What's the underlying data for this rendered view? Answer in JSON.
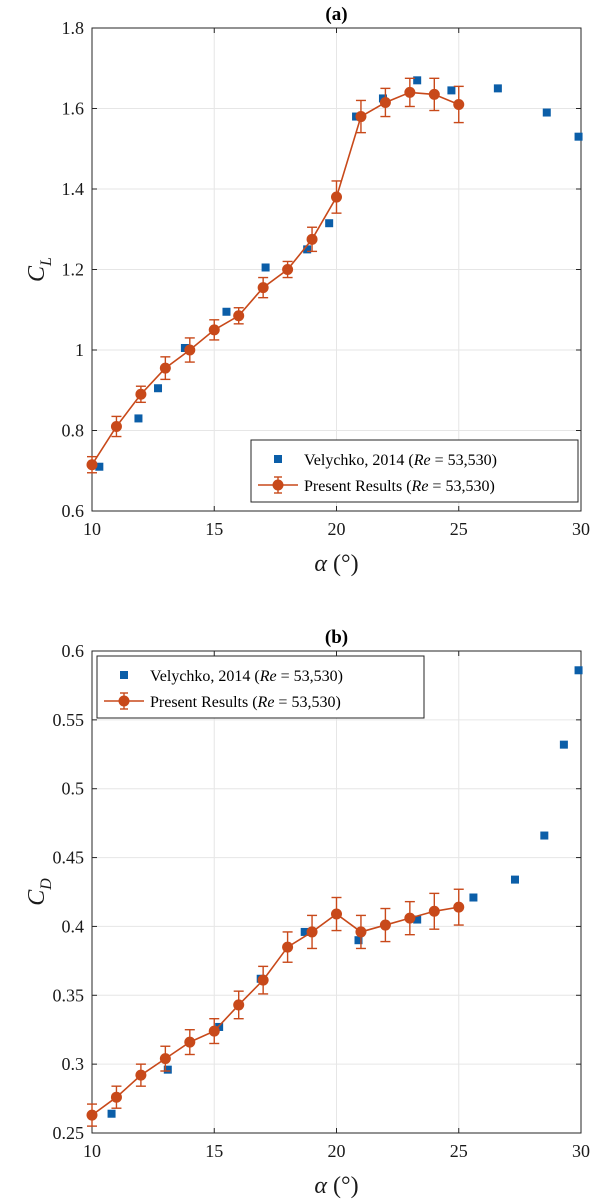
{
  "colors": {
    "velychko": "#0b5ea8",
    "present": "#c8491a",
    "grid": "#e6e6e6",
    "axis": "#262626"
  },
  "chart_data": [
    {
      "type": "scatter",
      "title": "(a)",
      "xlabel": {
        "symbol": "α",
        "unit": "(°)"
      },
      "ylabel": {
        "base": "C",
        "sub": "L"
      },
      "xlim": [
        10,
        30
      ],
      "ylim": [
        0.6,
        1.8
      ],
      "xticks": [
        10,
        15,
        20,
        25,
        30
      ],
      "xtick_labels": [
        "10",
        "15",
        "20",
        "25",
        "30"
      ],
      "yticks": [
        0.6,
        0.8,
        1.0,
        1.2,
        1.4,
        1.6,
        1.8
      ],
      "ytick_labels": [
        "0.6",
        "0.8",
        "1",
        "1.2",
        "1.4",
        "1.6",
        "1.8"
      ],
      "grid": true,
      "legend_position": "bottom-right",
      "series": [
        {
          "name": "Velychko, 2014",
          "re_label": "Re",
          "re_value": "= 53,530)",
          "marker": "square",
          "line": false,
          "x": [
            10.3,
            11.9,
            12.7,
            13.8,
            15.5,
            17.1,
            18.8,
            19.7,
            20.8,
            21.9,
            23.3,
            24.7,
            26.6,
            28.6,
            29.9
          ],
          "y": [
            0.71,
            0.83,
            0.905,
            1.005,
            1.095,
            1.205,
            1.25,
            1.315,
            1.58,
            1.625,
            1.67,
            1.645,
            1.65,
            1.59,
            1.53
          ]
        },
        {
          "name": "Present Results",
          "re_label": "Re",
          "re_value": "= 53,530)",
          "marker": "circle",
          "line": true,
          "x": [
            10,
            11,
            12,
            13,
            14,
            15,
            16,
            17,
            18,
            19,
            20,
            21,
            22,
            23,
            24,
            25
          ],
          "y": [
            0.715,
            0.81,
            0.89,
            0.955,
            1.0,
            1.05,
            1.085,
            1.155,
            1.2,
            1.275,
            1.38,
            1.58,
            1.615,
            1.64,
            1.635,
            1.61
          ],
          "error": [
            0.02,
            0.025,
            0.02,
            0.028,
            0.03,
            0.025,
            0.02,
            0.025,
            0.02,
            0.03,
            0.04,
            0.04,
            0.035,
            0.035,
            0.04,
            0.045
          ]
        }
      ]
    },
    {
      "type": "scatter",
      "title": "(b)",
      "xlabel": {
        "symbol": "α",
        "unit": "(°)"
      },
      "ylabel": {
        "base": "C",
        "sub": "D"
      },
      "xlim": [
        10,
        30
      ],
      "ylim": [
        0.25,
        0.6
      ],
      "xticks": [
        10,
        15,
        20,
        25,
        30
      ],
      "xtick_labels": [
        "10",
        "15",
        "20",
        "25",
        "30"
      ],
      "yticks": [
        0.25,
        0.3,
        0.35,
        0.4,
        0.45,
        0.5,
        0.55,
        0.6
      ],
      "ytick_labels": [
        "0.25",
        "0.3",
        "0.35",
        "0.4",
        "0.45",
        "0.5",
        "0.55",
        "0.6"
      ],
      "grid": true,
      "legend_position": "top-left",
      "series": [
        {
          "name": "Velychko, 2014",
          "re_label": "Re",
          "re_value": "= 53,530)",
          "marker": "square",
          "line": false,
          "x": [
            10.8,
            13.1,
            15.2,
            16.9,
            18.7,
            20.9,
            23.3,
            25.6,
            27.3,
            28.5,
            29.3,
            29.9
          ],
          "y": [
            0.264,
            0.296,
            0.327,
            0.362,
            0.396,
            0.39,
            0.405,
            0.421,
            0.434,
            0.466,
            0.532,
            0.586
          ]
        },
        {
          "name": "Present Results",
          "re_label": "Re",
          "re_value": "= 53,530)",
          "marker": "circle",
          "line": true,
          "x": [
            10,
            11,
            12,
            13,
            14,
            15,
            16,
            17,
            18,
            19,
            20,
            21,
            22,
            23,
            24,
            25
          ],
          "y": [
            0.263,
            0.276,
            0.292,
            0.304,
            0.316,
            0.324,
            0.343,
            0.361,
            0.385,
            0.396,
            0.409,
            0.396,
            0.401,
            0.406,
            0.411,
            0.414
          ],
          "error": [
            0.008,
            0.008,
            0.008,
            0.009,
            0.009,
            0.009,
            0.01,
            0.01,
            0.011,
            0.012,
            0.012,
            0.012,
            0.012,
            0.012,
            0.013,
            0.013
          ]
        }
      ]
    }
  ]
}
